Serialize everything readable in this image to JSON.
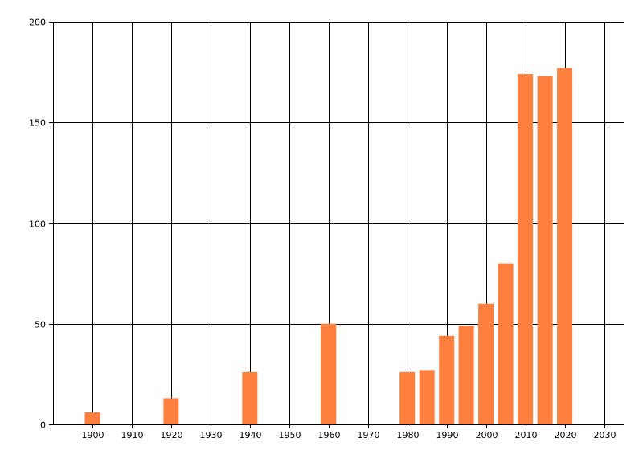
{
  "chart_data": {
    "type": "bar",
    "title": "",
    "xlabel": "",
    "ylabel": "",
    "x": [
      1900,
      1920,
      1940,
      1960,
      1980,
      1985,
      1990,
      1995,
      2000,
      2005,
      2010,
      2015,
      2020
    ],
    "values": [
      6,
      13,
      26,
      50,
      26,
      27,
      44,
      49,
      60,
      80,
      174,
      173,
      177
    ],
    "xlim": [
      1890,
      2035
    ],
    "ylim": [
      0,
      200
    ],
    "xticks": [
      1900,
      1910,
      1920,
      1930,
      1940,
      1950,
      1960,
      1970,
      1980,
      1990,
      2000,
      2010,
      2020,
      2030
    ],
    "yticks": [
      0,
      50,
      100,
      150,
      200
    ],
    "grid": true,
    "bar_color": "#FF7F3F",
    "grid_color": "#000000"
  }
}
